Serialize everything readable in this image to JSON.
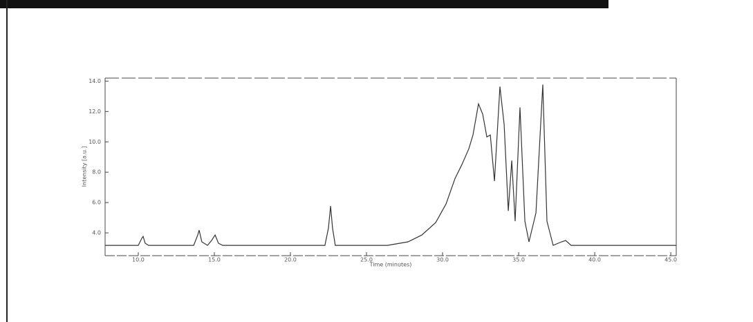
{
  "chart_data": {
    "type": "line",
    "y_label": "Intensity [a.u.]",
    "x_label": "Time (minutes)",
    "xlim": [
      7.82,
      45.36
    ],
    "ylim": [
      2.5,
      14.2
    ],
    "xticks": [
      {
        "value": 10,
        "label": "10.0"
      },
      {
        "value": 15,
        "label": "15.0"
      },
      {
        "value": 20,
        "label": "20.0"
      },
      {
        "value": 25,
        "label": "25.0"
      },
      {
        "value": 30,
        "label": "30.0"
      },
      {
        "value": 35,
        "label": "35.0"
      },
      {
        "value": 40,
        "label": "40.0"
      },
      {
        "value": 45,
        "label": "45.0"
      }
    ],
    "yticks": [
      {
        "value": 4,
        "label": "4.0"
      },
      {
        "value": 6,
        "label": "6.0"
      },
      {
        "value": 8,
        "label": "8.0"
      },
      {
        "value": 10,
        "label": "10.0"
      },
      {
        "value": 12,
        "label": "12.0"
      },
      {
        "value": 14,
        "label": "14.0"
      }
    ],
    "series": [
      {
        "color": "#333333",
        "x": [
          7.82,
          10.0,
          10.23,
          10.32,
          10.45,
          10.68,
          13.64,
          13.91,
          14.0,
          14.18,
          14.55,
          14.82,
          15.05,
          15.27,
          15.55,
          22.27,
          22.5,
          22.64,
          22.77,
          22.95,
          26.37,
          27.73,
          28.64,
          29.55,
          30.23,
          30.82,
          31.27,
          31.73,
          32.0,
          32.36,
          32.64,
          32.91,
          33.14,
          33.41,
          33.77,
          34.05,
          34.32,
          34.55,
          34.77,
          35.09,
          35.41,
          35.68,
          36.14,
          36.59,
          36.86,
          37.27,
          37.82,
          38.09,
          38.45,
          45.36
        ],
        "values": [
          3.18,
          3.18,
          3.64,
          3.77,
          3.32,
          3.18,
          3.18,
          3.86,
          4.18,
          3.41,
          3.18,
          3.5,
          3.86,
          3.32,
          3.18,
          3.18,
          4.32,
          5.77,
          4.32,
          3.18,
          3.18,
          3.41,
          3.86,
          4.68,
          5.91,
          7.59,
          8.5,
          9.55,
          10.45,
          12.5,
          11.82,
          10.32,
          10.45,
          7.41,
          13.64,
          11.14,
          5.45,
          8.77,
          4.77,
          12.27,
          4.77,
          3.41,
          5.32,
          13.77,
          4.77,
          3.18,
          3.41,
          3.5,
          3.18,
          3.18
        ]
      }
    ]
  }
}
